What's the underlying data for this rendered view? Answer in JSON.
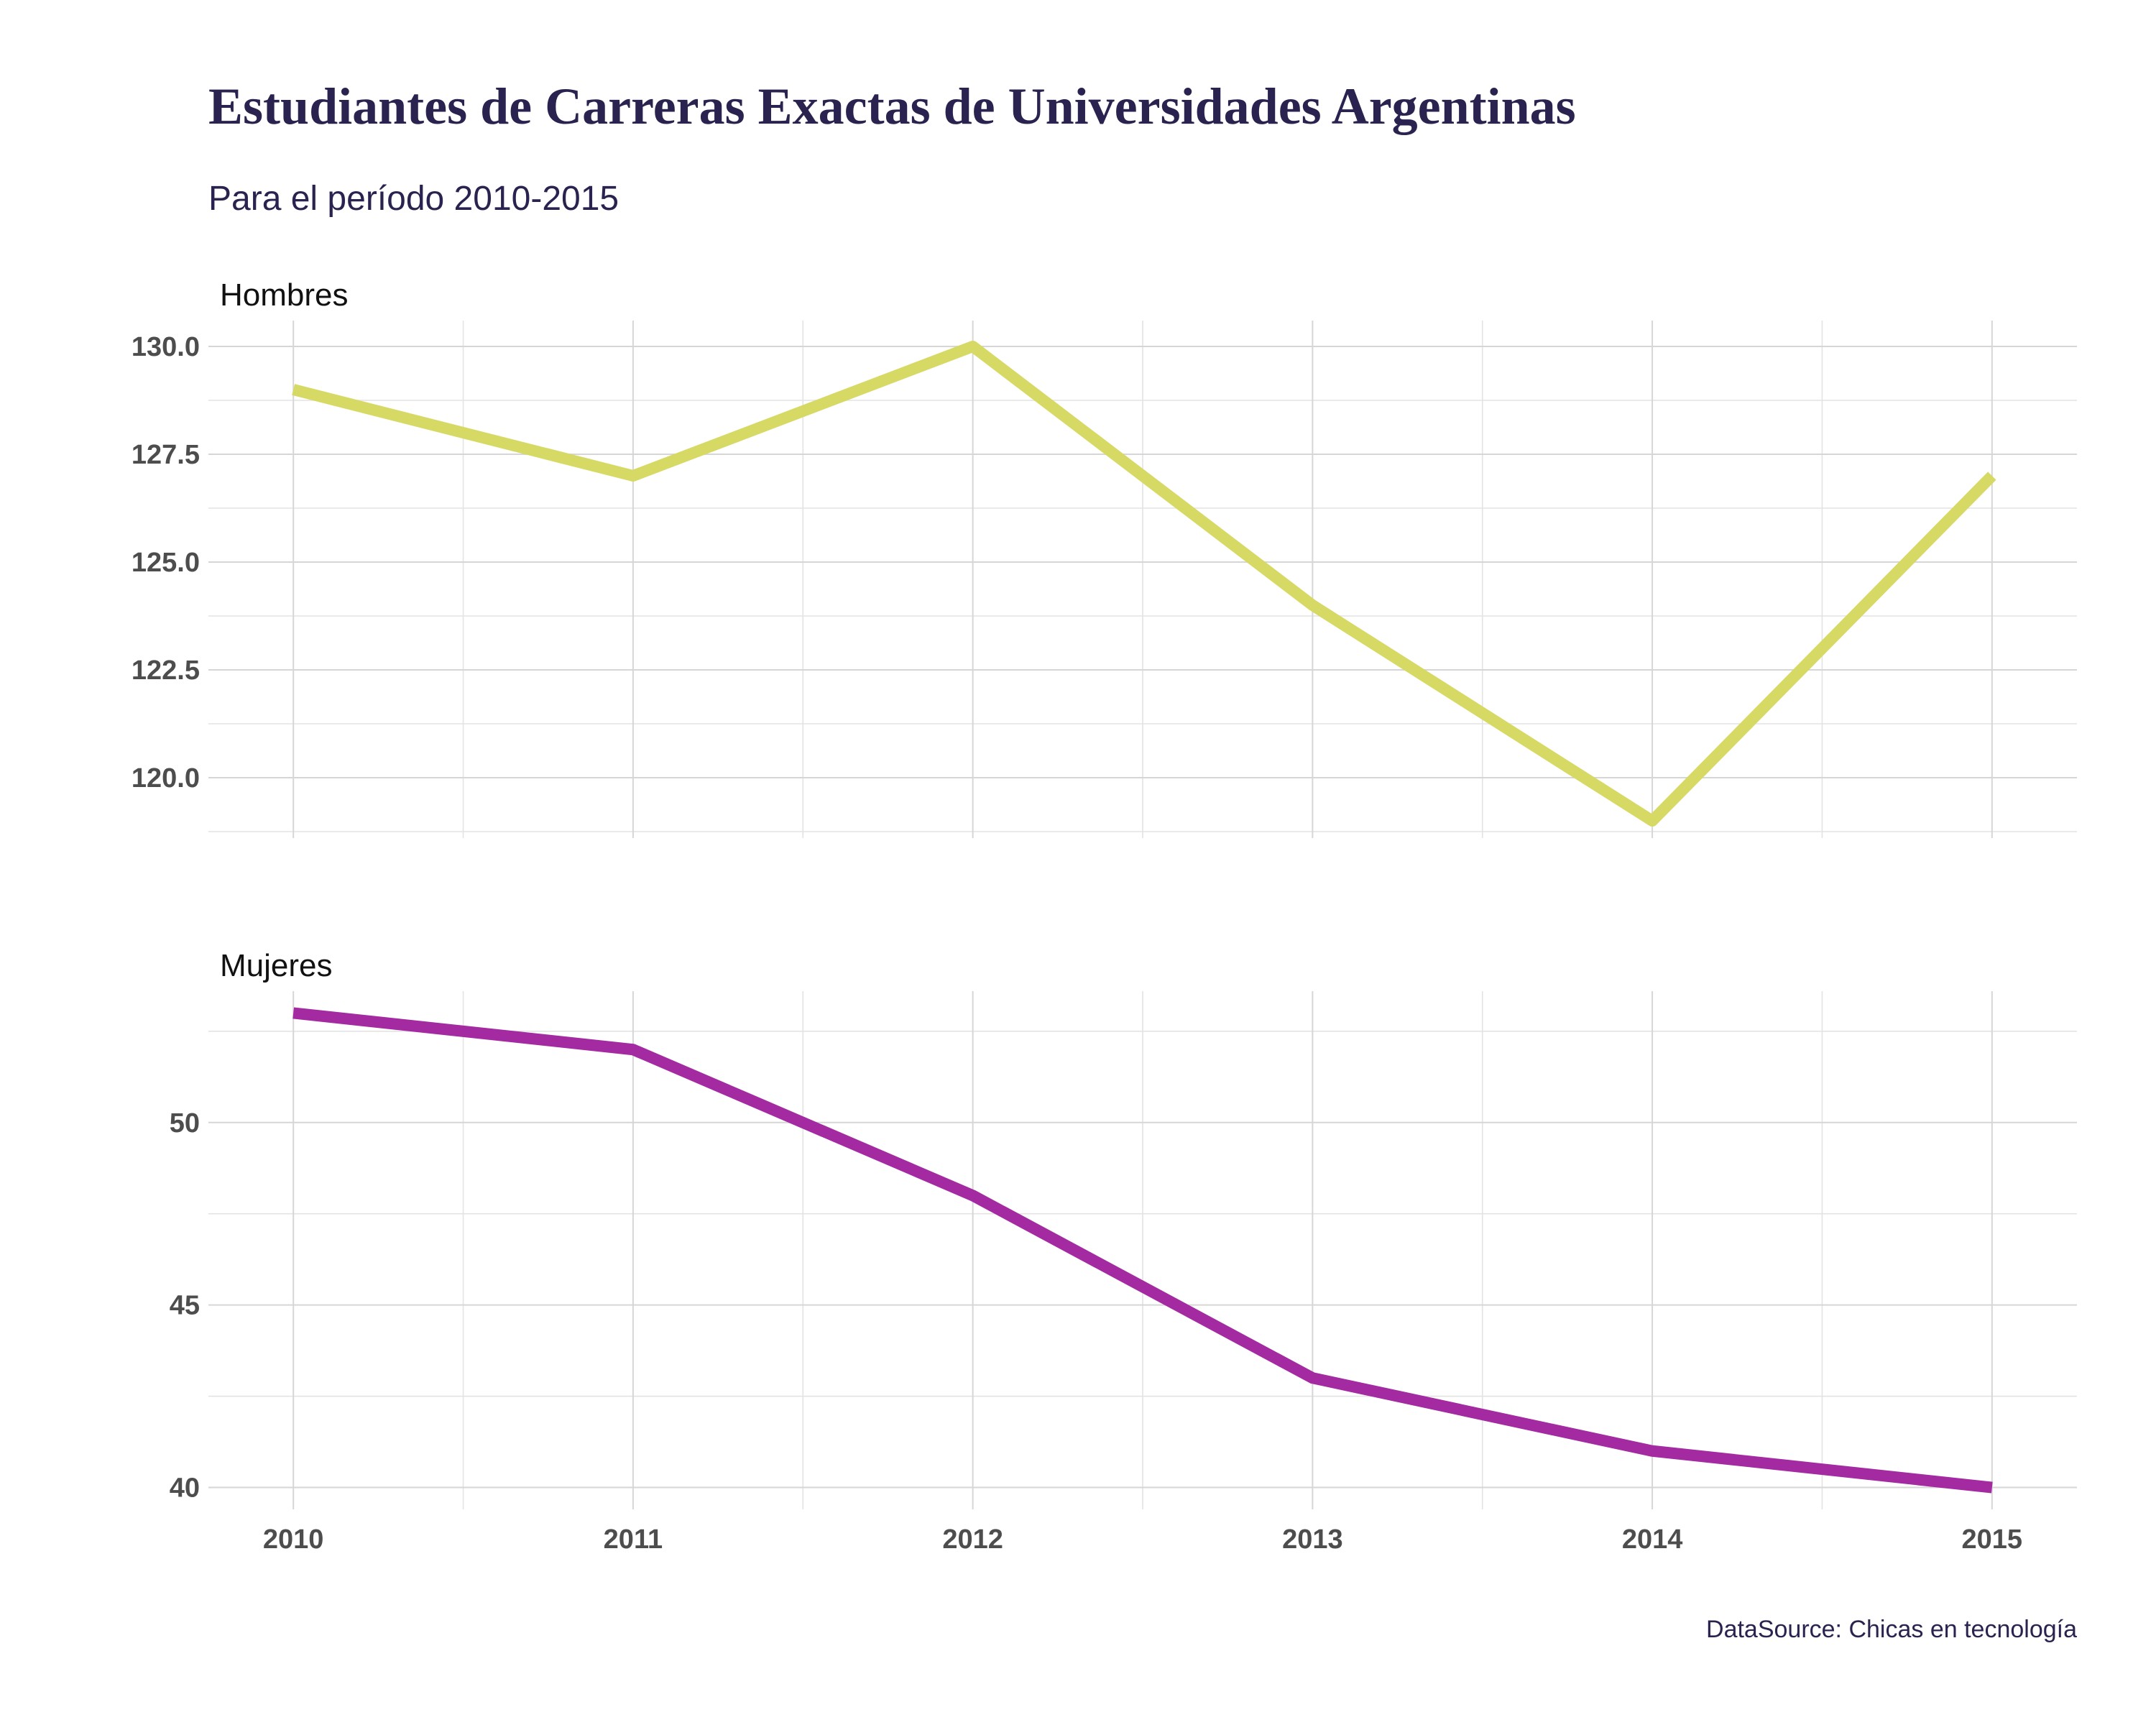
{
  "title": "Estudiantes de Carreras Exactas de Universidades Argentinas",
  "subtitle": "Para el período 2010-2015",
  "caption": "DataSource: Chicas en tecnología",
  "colors": {
    "title": "#2a2350",
    "hombres": "#d7d965",
    "mujeres": "#a42aa2"
  },
  "chart_data": {
    "type": "line",
    "x": [
      2010,
      2011,
      2012,
      2013,
      2014,
      2015
    ],
    "x_tick_labels": [
      "2010",
      "2011",
      "2012",
      "2013",
      "2014",
      "2015"
    ],
    "xlim": [
      2009.75,
      2015.25
    ],
    "panels": [
      {
        "label": "Hombres",
        "series_name": "Hombres",
        "values": [
          129,
          127,
          130,
          124,
          119,
          127
        ],
        "ylim": [
          118.6,
          130.6
        ],
        "y_ticks": [
          120.0,
          122.5,
          125.0,
          127.5,
          130.0
        ],
        "y_tick_labels": [
          "120.0",
          "122.5",
          "125.0",
          "127.5",
          "130.0"
        ],
        "y_minor": [
          118.75,
          121.25,
          123.75,
          126.25,
          128.75
        ]
      },
      {
        "label": "Mujeres",
        "series_name": "Mujeres",
        "values": [
          53,
          52,
          48,
          43,
          41,
          40
        ],
        "ylim": [
          39.4,
          53.6
        ],
        "y_ticks": [
          40,
          45,
          50
        ],
        "y_tick_labels": [
          "40",
          "45",
          "50"
        ],
        "y_minor": [
          42.5,
          47.5,
          52.5
        ]
      }
    ]
  }
}
